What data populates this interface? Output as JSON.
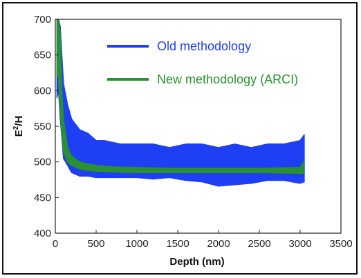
{
  "chart_data": {
    "type": "line",
    "title": "",
    "xlabel": "Depth (nm)",
    "ylabel_main": "E",
    "ylabel_sup": "2",
    "ylabel_tail": "/H",
    "xlim": [
      0,
      3500
    ],
    "ylim": [
      400,
      700
    ],
    "xticks": [
      0,
      500,
      1000,
      1500,
      2000,
      2500,
      3000,
      3500
    ],
    "yticks": [
      400,
      450,
      500,
      550,
      600,
      650,
      700
    ],
    "grid": false,
    "legend_position": "top-right",
    "series": [
      {
        "name": "Old methodology",
        "color": "#1f3ff5",
        "x": [
          20,
          40,
          60,
          80,
          100,
          150,
          200,
          300,
          400,
          500,
          600,
          800,
          1000,
          1200,
          1400,
          1600,
          1800,
          2000,
          2200,
          2400,
          2600,
          2800,
          3000,
          3050
        ],
        "upper": [
          700,
          700,
          690,
          650,
          610,
          580,
          560,
          545,
          540,
          530,
          530,
          525,
          525,
          525,
          520,
          525,
          525,
          520,
          525,
          520,
          525,
          525,
          530,
          538
        ],
        "lower": [
          590,
          600,
          560,
          535,
          505,
          495,
          485,
          480,
          480,
          478,
          478,
          478,
          478,
          476,
          478,
          474,
          472,
          466,
          468,
          470,
          474,
          474,
          470,
          472
        ]
      },
      {
        "name": "New methodology (ARCI)",
        "color": "#2a9130",
        "x": [
          20,
          40,
          60,
          80,
          100,
          150,
          200,
          300,
          400,
          500,
          700,
          1000,
          1500,
          2000,
          2500,
          3000,
          3040
        ],
        "upper": [
          700,
          700,
          680,
          600,
          560,
          520,
          508,
          500,
          497,
          495,
          493,
          492,
          491,
          491,
          491,
          492,
          500
        ],
        "lower": [
          620,
          620,
          570,
          540,
          515,
          500,
          495,
          490,
          488,
          487,
          486,
          485,
          485,
          485,
          485,
          484,
          484
        ]
      }
    ]
  }
}
